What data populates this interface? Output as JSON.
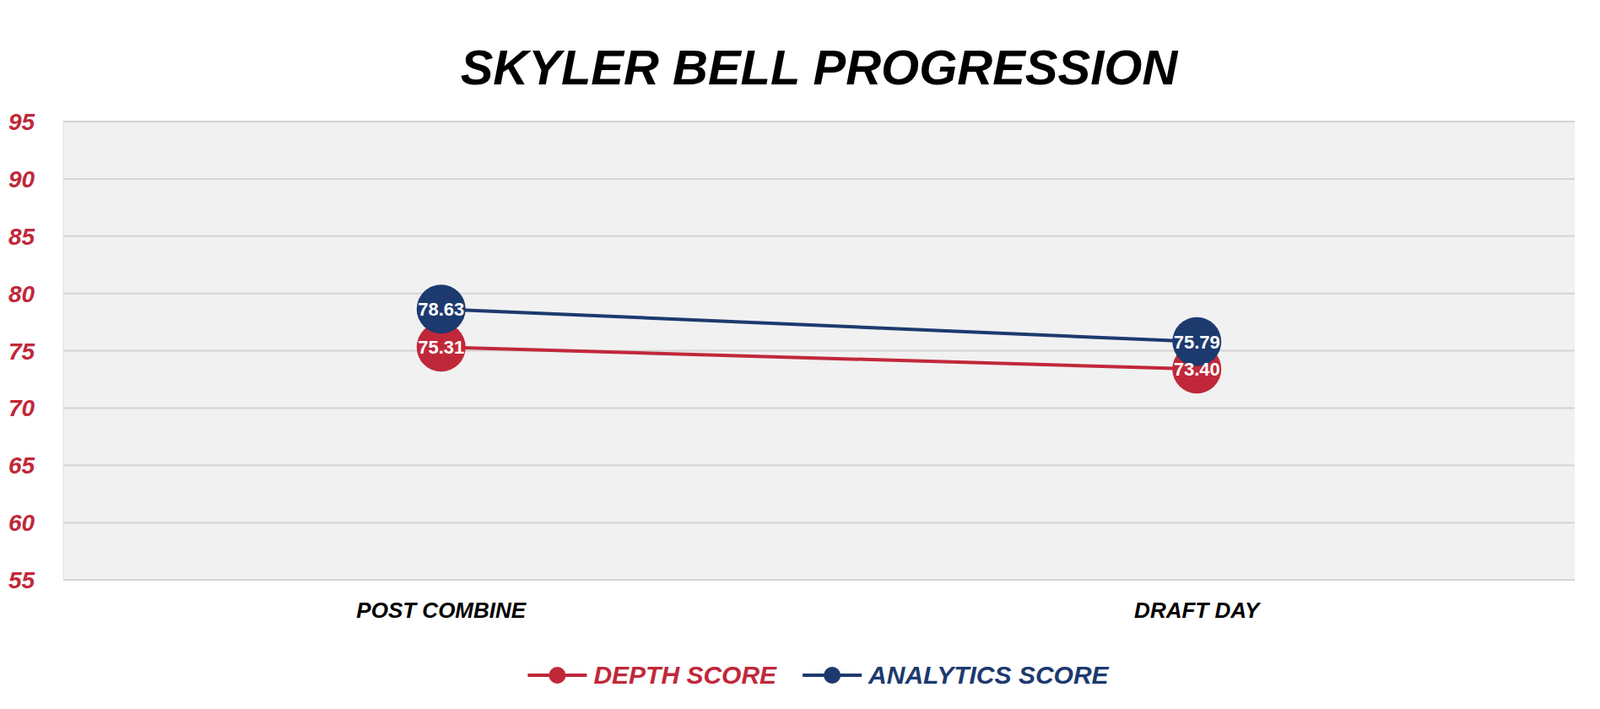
{
  "chart_data": {
    "type": "line",
    "title": "SKYLER BELL PROGRESSION",
    "categories": [
      "POST COMBINE",
      "DRAFT DAY"
    ],
    "series": [
      {
        "name": "DEPTH SCORE",
        "color": "#c0283a",
        "values": [
          75.31,
          73.4
        ],
        "value_labels": [
          "75.31",
          "73.40"
        ],
        "marker": "circle"
      },
      {
        "name": "ANALYTICS SCORE",
        "color": "#1c3a6e",
        "values": [
          78.63,
          75.79
        ],
        "value_labels": [
          "78.63",
          "75.79"
        ],
        "marker": "circle"
      }
    ],
    "ylim": [
      55,
      95
    ],
    "yticks": [
      55,
      60,
      65,
      70,
      75,
      80,
      85,
      90,
      95
    ],
    "grid": true,
    "legend": "bottom",
    "data_labels": true
  }
}
